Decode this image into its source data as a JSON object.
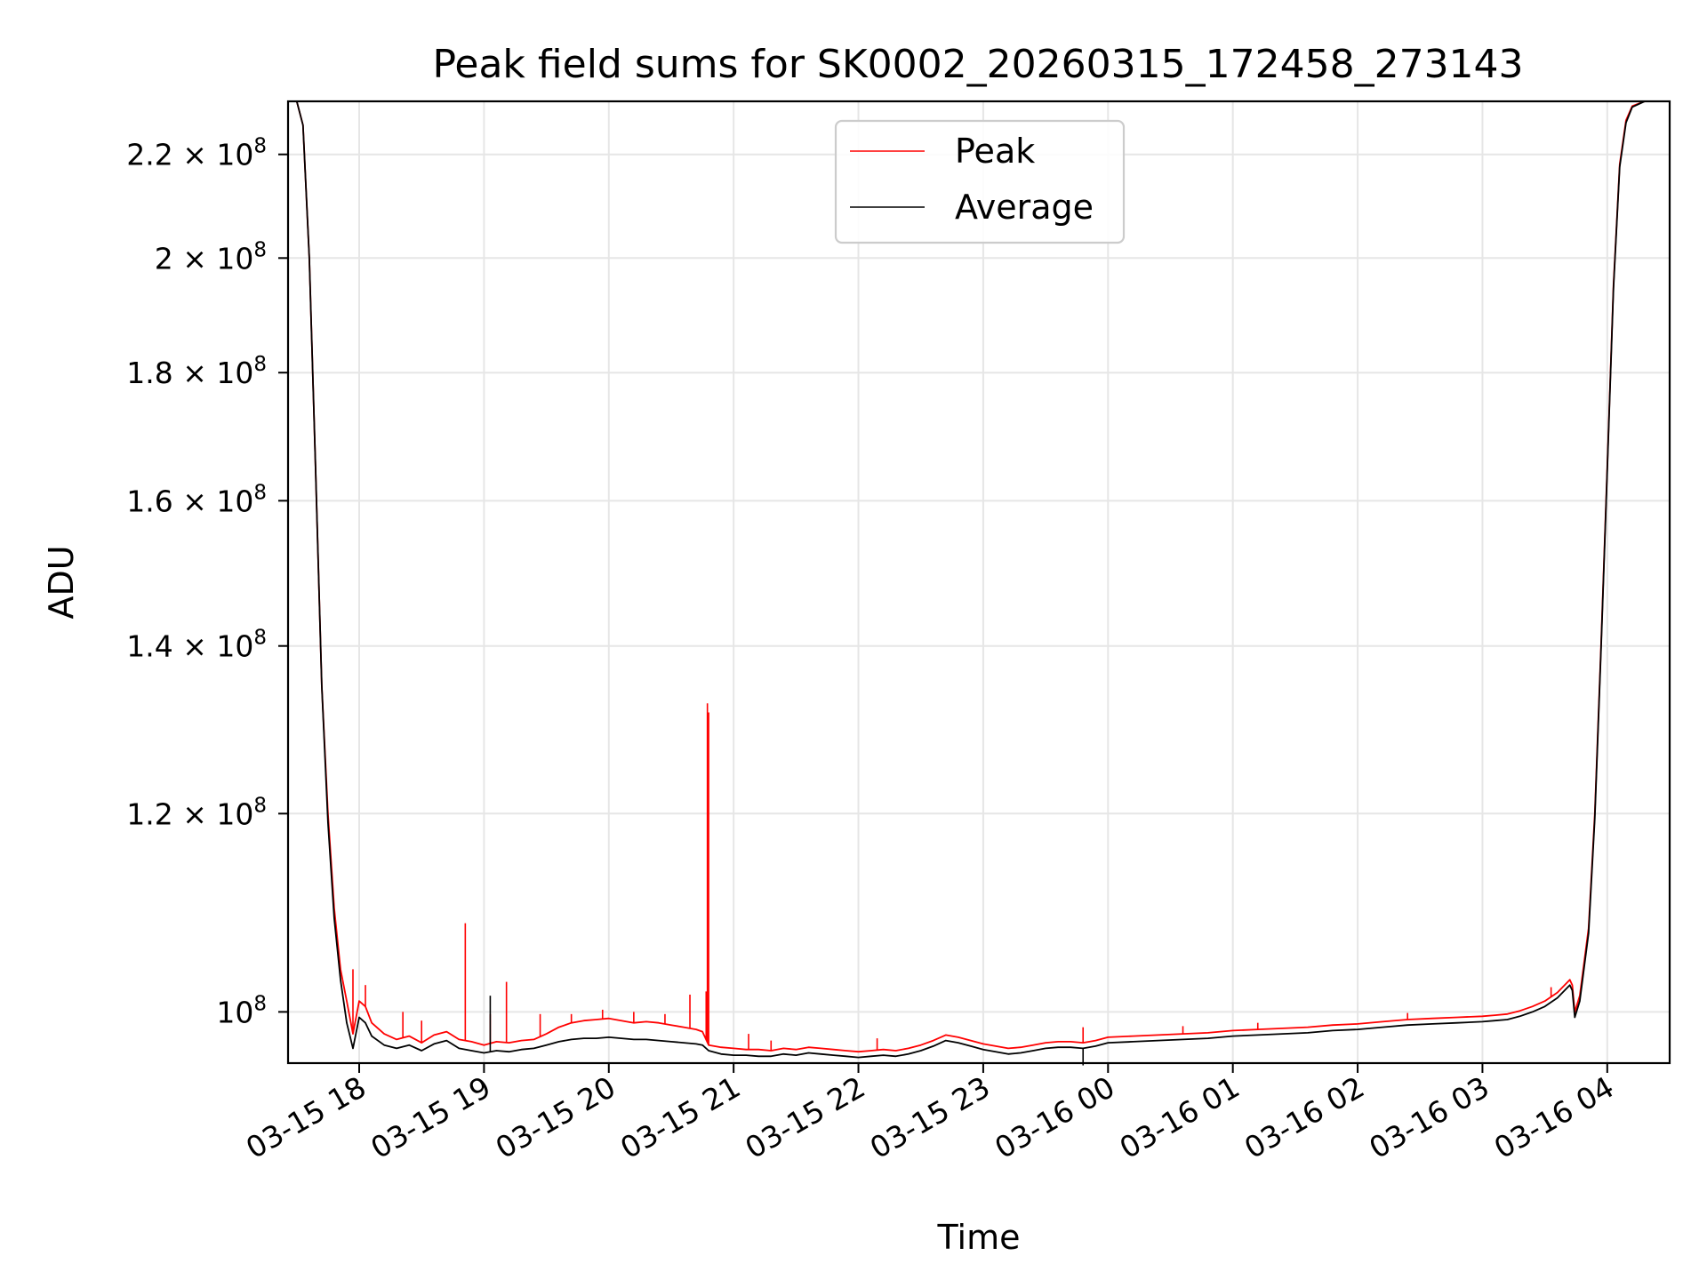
{
  "chart_data": {
    "type": "line",
    "title": "Peak field sums for SK0002_20260315_172458_273143",
    "xlabel": "Time",
    "ylabel": "ADU",
    "yscale": "log",
    "ylim": [
      95400000,
      231000000
    ],
    "xlim_hours_since_0315_1700": [
      0.43,
      11.5
    ],
    "grid": true,
    "legend_position": "upper-center",
    "x_ticks": [
      {
        "label": "03-15 18",
        "hours": 1
      },
      {
        "label": "03-15 19",
        "hours": 2
      },
      {
        "label": "03-15 20",
        "hours": 3
      },
      {
        "label": "03-15 21",
        "hours": 4
      },
      {
        "label": "03-15 22",
        "hours": 5
      },
      {
        "label": "03-15 23",
        "hours": 6
      },
      {
        "label": "03-16 00",
        "hours": 7
      },
      {
        "label": "03-16 01",
        "hours": 8
      },
      {
        "label": "03-16 02",
        "hours": 9
      },
      {
        "label": "03-16 03",
        "hours": 10
      },
      {
        "label": "03-16 04",
        "hours": 11
      }
    ],
    "y_ticks": [
      {
        "mantissa": "2.2",
        "value": 220000000
      },
      {
        "mantissa": "2",
        "value": 200000000
      },
      {
        "mantissa": "1.8",
        "value": 180000000
      },
      {
        "mantissa": "1.6",
        "value": 160000000
      },
      {
        "mantissa": "1.4",
        "value": 140000000
      },
      {
        "mantissa": "1.2",
        "value": 120000000
      },
      {
        "mantissa": "",
        "value": 100000000
      }
    ],
    "y_tick_times": "×",
    "y_tick_base": "10",
    "y_tick_exponent": "8",
    "series": [
      {
        "name": "Peak",
        "color": "#ff0000",
        "points": [
          [
            0.43,
            231000000
          ],
          [
            0.5,
            231000000
          ],
          [
            0.55,
            226000000
          ],
          [
            0.6,
            200000000
          ],
          [
            0.65,
            165000000
          ],
          [
            0.7,
            135000000
          ],
          [
            0.75,
            120000000
          ],
          [
            0.8,
            110000000
          ],
          [
            0.85,
            104000000
          ],
          [
            0.9,
            101000000
          ],
          [
            0.95,
            98000000
          ],
          [
            1.0,
            101000000
          ],
          [
            1.05,
            100500000
          ],
          [
            1.1,
            99000000
          ],
          [
            1.2,
            98000000
          ],
          [
            1.3,
            97500000
          ],
          [
            1.4,
            97800000
          ],
          [
            1.5,
            97200000
          ],
          [
            1.6,
            97900000
          ],
          [
            1.7,
            98200000
          ],
          [
            1.8,
            97500000
          ],
          [
            1.9,
            97300000
          ],
          [
            2.0,
            97000000
          ],
          [
            2.1,
            97300000
          ],
          [
            2.2,
            97200000
          ],
          [
            2.3,
            97400000
          ],
          [
            2.4,
            97500000
          ],
          [
            2.5,
            98000000
          ],
          [
            2.6,
            98600000
          ],
          [
            2.7,
            99000000
          ],
          [
            2.8,
            99200000
          ],
          [
            2.9,
            99300000
          ],
          [
            3.0,
            99400000
          ],
          [
            3.1,
            99200000
          ],
          [
            3.2,
            99000000
          ],
          [
            3.3,
            99100000
          ],
          [
            3.4,
            99000000
          ],
          [
            3.5,
            98800000
          ],
          [
            3.6,
            98600000
          ],
          [
            3.7,
            98400000
          ],
          [
            3.75,
            98200000
          ],
          [
            3.8,
            97000000
          ],
          [
            3.9,
            96800000
          ],
          [
            4.0,
            96700000
          ],
          [
            4.1,
            96600000
          ],
          [
            4.2,
            96600000
          ],
          [
            4.3,
            96500000
          ],
          [
            4.4,
            96700000
          ],
          [
            4.5,
            96600000
          ],
          [
            4.6,
            96800000
          ],
          [
            4.7,
            96700000
          ],
          [
            4.8,
            96600000
          ],
          [
            4.9,
            96500000
          ],
          [
            5.0,
            96400000
          ],
          [
            5.1,
            96500000
          ],
          [
            5.2,
            96600000
          ],
          [
            5.3,
            96500000
          ],
          [
            5.4,
            96700000
          ],
          [
            5.5,
            97000000
          ],
          [
            5.6,
            97400000
          ],
          [
            5.7,
            97900000
          ],
          [
            5.8,
            97700000
          ],
          [
            5.9,
            97400000
          ],
          [
            6.0,
            97100000
          ],
          [
            6.1,
            96900000
          ],
          [
            6.2,
            96700000
          ],
          [
            6.3,
            96800000
          ],
          [
            6.4,
            97000000
          ],
          [
            6.5,
            97200000
          ],
          [
            6.6,
            97300000
          ],
          [
            6.7,
            97300000
          ],
          [
            6.8,
            97200000
          ],
          [
            6.9,
            97400000
          ],
          [
            7.0,
            97700000
          ],
          [
            7.2,
            97800000
          ],
          [
            7.4,
            97900000
          ],
          [
            7.6,
            98000000
          ],
          [
            7.8,
            98100000
          ],
          [
            8.0,
            98300000
          ],
          [
            8.2,
            98400000
          ],
          [
            8.4,
            98500000
          ],
          [
            8.6,
            98600000
          ],
          [
            8.8,
            98800000
          ],
          [
            9.0,
            98900000
          ],
          [
            9.2,
            99100000
          ],
          [
            9.4,
            99300000
          ],
          [
            9.6,
            99400000
          ],
          [
            9.8,
            99500000
          ],
          [
            10.0,
            99600000
          ],
          [
            10.1,
            99700000
          ],
          [
            10.2,
            99800000
          ],
          [
            10.3,
            100100000
          ],
          [
            10.4,
            100500000
          ],
          [
            10.5,
            101000000
          ],
          [
            10.6,
            101800000
          ],
          [
            10.7,
            103000000
          ],
          [
            10.72,
            102500000
          ],
          [
            10.74,
            100000000
          ],
          [
            10.78,
            101500000
          ],
          [
            10.85,
            108000000
          ],
          [
            10.9,
            120000000
          ],
          [
            10.95,
            140000000
          ],
          [
            11.0,
            165000000
          ],
          [
            11.05,
            195000000
          ],
          [
            11.1,
            218000000
          ],
          [
            11.15,
            227000000
          ],
          [
            11.2,
            230000000
          ],
          [
            11.3,
            231000000
          ],
          [
            11.5,
            231000000
          ]
        ],
        "spikes": [
          [
            0.95,
            104000000
          ],
          [
            1.05,
            102500000
          ],
          [
            1.35,
            100000000
          ],
          [
            1.5,
            99200000
          ],
          [
            1.85,
            108500000
          ],
          [
            2.05,
            99800000
          ],
          [
            2.18,
            102800000
          ],
          [
            2.45,
            99800000
          ],
          [
            2.7,
            99800000
          ],
          [
            2.95,
            100200000
          ],
          [
            3.2,
            100000000
          ],
          [
            3.45,
            99800000
          ],
          [
            3.65,
            101600000
          ],
          [
            3.78,
            101900000
          ],
          [
            3.79,
            132800000
          ],
          [
            3.8,
            131700000
          ],
          [
            4.12,
            98000000
          ],
          [
            4.3,
            97400000
          ],
          [
            5.15,
            97600000
          ],
          [
            6.8,
            98600000
          ],
          [
            7.6,
            98700000
          ],
          [
            8.2,
            99000000
          ],
          [
            9.4,
            99900000
          ],
          [
            10.55,
            102300000
          ]
        ]
      },
      {
        "name": "Average",
        "color": "#000000",
        "points": [
          [
            0.43,
            231000000
          ],
          [
            0.5,
            231000000
          ],
          [
            0.55,
            226000000
          ],
          [
            0.6,
            200000000
          ],
          [
            0.65,
            165000000
          ],
          [
            0.7,
            135000000
          ],
          [
            0.75,
            119000000
          ],
          [
            0.8,
            109000000
          ],
          [
            0.85,
            103000000
          ],
          [
            0.9,
            99000000
          ],
          [
            0.95,
            96700000
          ],
          [
            1.0,
            99500000
          ],
          [
            1.05,
            99000000
          ],
          [
            1.1,
            97800000
          ],
          [
            1.2,
            97000000
          ],
          [
            1.3,
            96700000
          ],
          [
            1.4,
            97000000
          ],
          [
            1.5,
            96500000
          ],
          [
            1.6,
            97100000
          ],
          [
            1.7,
            97400000
          ],
          [
            1.8,
            96700000
          ],
          [
            1.9,
            96500000
          ],
          [
            2.0,
            96300000
          ],
          [
            2.1,
            96500000
          ],
          [
            2.2,
            96400000
          ],
          [
            2.3,
            96600000
          ],
          [
            2.4,
            96700000
          ],
          [
            2.5,
            97000000
          ],
          [
            2.6,
            97300000
          ],
          [
            2.7,
            97500000
          ],
          [
            2.8,
            97600000
          ],
          [
            2.9,
            97600000
          ],
          [
            3.0,
            97700000
          ],
          [
            3.1,
            97600000
          ],
          [
            3.2,
            97500000
          ],
          [
            3.3,
            97500000
          ],
          [
            3.4,
            97400000
          ],
          [
            3.5,
            97300000
          ],
          [
            3.6,
            97200000
          ],
          [
            3.7,
            97100000
          ],
          [
            3.75,
            97000000
          ],
          [
            3.8,
            96500000
          ],
          [
            3.9,
            96200000
          ],
          [
            4.0,
            96100000
          ],
          [
            4.1,
            96100000
          ],
          [
            4.2,
            96000000
          ],
          [
            4.3,
            96000000
          ],
          [
            4.4,
            96200000
          ],
          [
            4.5,
            96100000
          ],
          [
            4.6,
            96300000
          ],
          [
            4.7,
            96200000
          ],
          [
            4.8,
            96100000
          ],
          [
            4.9,
            96000000
          ],
          [
            5.0,
            95900000
          ],
          [
            5.1,
            96000000
          ],
          [
            5.2,
            96100000
          ],
          [
            5.3,
            96000000
          ],
          [
            5.4,
            96200000
          ],
          [
            5.5,
            96500000
          ],
          [
            5.6,
            96900000
          ],
          [
            5.7,
            97400000
          ],
          [
            5.8,
            97200000
          ],
          [
            5.9,
            96900000
          ],
          [
            6.0,
            96600000
          ],
          [
            6.1,
            96400000
          ],
          [
            6.2,
            96200000
          ],
          [
            6.3,
            96300000
          ],
          [
            6.4,
            96500000
          ],
          [
            6.5,
            96700000
          ],
          [
            6.6,
            96800000
          ],
          [
            6.7,
            96800000
          ],
          [
            6.8,
            96700000
          ],
          [
            6.9,
            96900000
          ],
          [
            7.0,
            97200000
          ],
          [
            7.2,
            97300000
          ],
          [
            7.4,
            97400000
          ],
          [
            7.6,
            97500000
          ],
          [
            7.8,
            97600000
          ],
          [
            8.0,
            97800000
          ],
          [
            8.2,
            97900000
          ],
          [
            8.4,
            98000000
          ],
          [
            8.6,
            98100000
          ],
          [
            8.8,
            98300000
          ],
          [
            9.0,
            98400000
          ],
          [
            9.2,
            98600000
          ],
          [
            9.4,
            98800000
          ],
          [
            9.6,
            98900000
          ],
          [
            9.8,
            99000000
          ],
          [
            10.0,
            99100000
          ],
          [
            10.1,
            99200000
          ],
          [
            10.2,
            99300000
          ],
          [
            10.3,
            99600000
          ],
          [
            10.4,
            100000000
          ],
          [
            10.5,
            100500000
          ],
          [
            10.6,
            101300000
          ],
          [
            10.7,
            102500000
          ],
          [
            10.72,
            102000000
          ],
          [
            10.74,
            99500000
          ],
          [
            10.78,
            101000000
          ],
          [
            10.85,
            107500000
          ],
          [
            10.9,
            119500000
          ],
          [
            10.95,
            139500000
          ],
          [
            11.0,
            164500000
          ],
          [
            11.05,
            194500000
          ],
          [
            11.1,
            217500000
          ],
          [
            11.15,
            226500000
          ],
          [
            11.2,
            229800000
          ],
          [
            11.3,
            231000000
          ],
          [
            11.5,
            231000000
          ]
        ],
        "spikes": [
          [
            2.05,
            101500000
          ],
          [
            6.8,
            95200000
          ]
        ]
      }
    ]
  }
}
